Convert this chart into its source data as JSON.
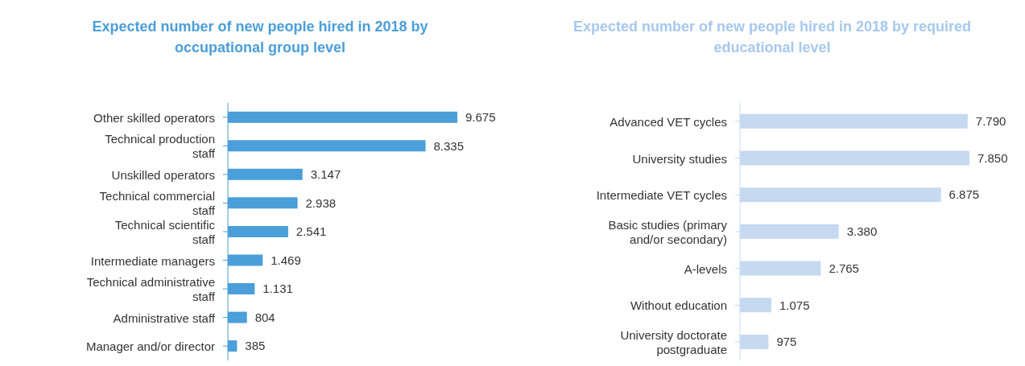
{
  "chart_data": [
    {
      "type": "bar",
      "orientation": "horizontal",
      "title": "Expected number of new people hired in 2018 by occupational group level",
      "categories": [
        "Other skilled operators",
        "Technical production staff",
        "Unskilled operators",
        "Technical commercial staff",
        "Technical scientific staff",
        "Intermediate managers",
        "Technical administrative staff",
        "Administrative staff",
        "Manager and/or director"
      ],
      "values": [
        9675,
        8335,
        3147,
        2938,
        2541,
        1469,
        1131,
        804,
        385
      ],
      "value_labels": [
        "9.675",
        "8.335",
        "3.147",
        "2.938",
        "2.541",
        "1.469",
        "1.131",
        "804",
        "385"
      ],
      "color": "#4a9ed9"
    },
    {
      "type": "bar",
      "orientation": "horizontal",
      "title": "Expected number of new people hired in 2018 by required educational level",
      "categories": [
        "Advanced VET cycles",
        "University studies",
        "Intermediate VET cycles",
        "Basic studies (primary and/or secondary)",
        "A-levels",
        "Without education",
        "University doctorate postgraduate"
      ],
      "values": [
        7790,
        7850,
        6875,
        3380,
        2765,
        1075,
        975
      ],
      "value_labels": [
        "7.790",
        "7.850",
        "6.875",
        "3.380",
        "2.765",
        "1.075",
        "975"
      ],
      "color": "#c5d9f1"
    }
  ]
}
